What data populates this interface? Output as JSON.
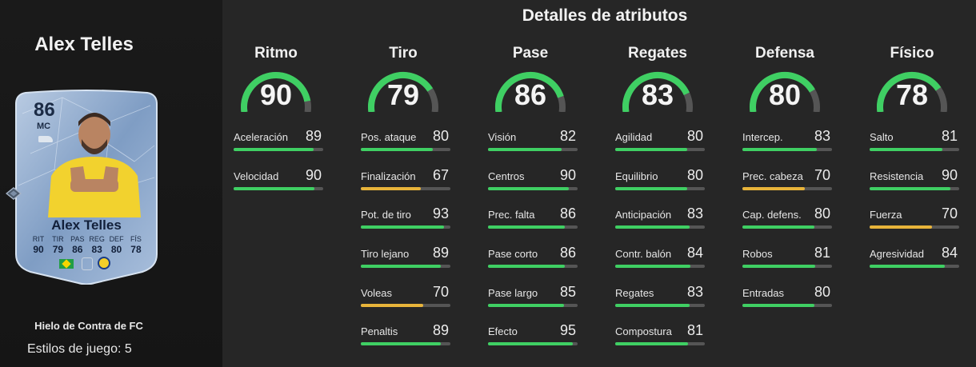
{
  "player": {
    "name": "Alex Telles",
    "card": {
      "rating": "86",
      "position": "MC",
      "name": "Alex Telles",
      "stat_labels": [
        "RIT",
        "TIR",
        "PAS",
        "REG",
        "DEF",
        "FÍS"
      ],
      "stat_values": [
        "90",
        "79",
        "86",
        "83",
        "80",
        "78"
      ]
    },
    "program": "Hielo de Contra de FC",
    "playstyles": "Estilos de juego: 5"
  },
  "attributes_title": "Detalles de atributos",
  "colors": {
    "green": "#3fcf63",
    "yellow": "#e8b43a",
    "track": "#555555"
  },
  "columns": [
    {
      "title": "Ritmo",
      "value": "90",
      "stats": [
        {
          "label": "Aceleración",
          "value": "89"
        },
        {
          "label": "Velocidad",
          "value": "90"
        }
      ]
    },
    {
      "title": "Tiro",
      "value": "79",
      "stats": [
        {
          "label": "Pos. ataque",
          "value": "80"
        },
        {
          "label": "Finalización",
          "value": "67"
        },
        {
          "label": "Pot. de tiro",
          "value": "93"
        },
        {
          "label": "Tiro lejano",
          "value": "89"
        },
        {
          "label": "Voleas",
          "value": "70"
        },
        {
          "label": "Penaltis",
          "value": "89"
        }
      ]
    },
    {
      "title": "Pase",
      "value": "86",
      "stats": [
        {
          "label": "Visión",
          "value": "82"
        },
        {
          "label": "Centros",
          "value": "90"
        },
        {
          "label": "Prec. falta",
          "value": "86"
        },
        {
          "label": "Pase corto",
          "value": "86"
        },
        {
          "label": "Pase largo",
          "value": "85"
        },
        {
          "label": "Efecto",
          "value": "95"
        }
      ]
    },
    {
      "title": "Regates",
      "value": "83",
      "stats": [
        {
          "label": "Agilidad",
          "value": "80"
        },
        {
          "label": "Equilibrio",
          "value": "80"
        },
        {
          "label": "Anticipación",
          "value": "83"
        },
        {
          "label": "Contr. balón",
          "value": "84"
        },
        {
          "label": "Regates",
          "value": "83"
        },
        {
          "label": "Compostura",
          "value": "81"
        }
      ]
    },
    {
      "title": "Defensa",
      "value": "80",
      "stats": [
        {
          "label": "Intercep.",
          "value": "83"
        },
        {
          "label": "Prec. cabeza",
          "value": "70"
        },
        {
          "label": "Cap. defens.",
          "value": "80"
        },
        {
          "label": "Robos",
          "value": "81"
        },
        {
          "label": "Entradas",
          "value": "80"
        }
      ]
    },
    {
      "title": "Físico",
      "value": "78",
      "stats": [
        {
          "label": "Salto",
          "value": "81"
        },
        {
          "label": "Resistencia",
          "value": "90"
        },
        {
          "label": "Fuerza",
          "value": "70"
        },
        {
          "label": "Agresividad",
          "value": "84"
        }
      ]
    }
  ]
}
